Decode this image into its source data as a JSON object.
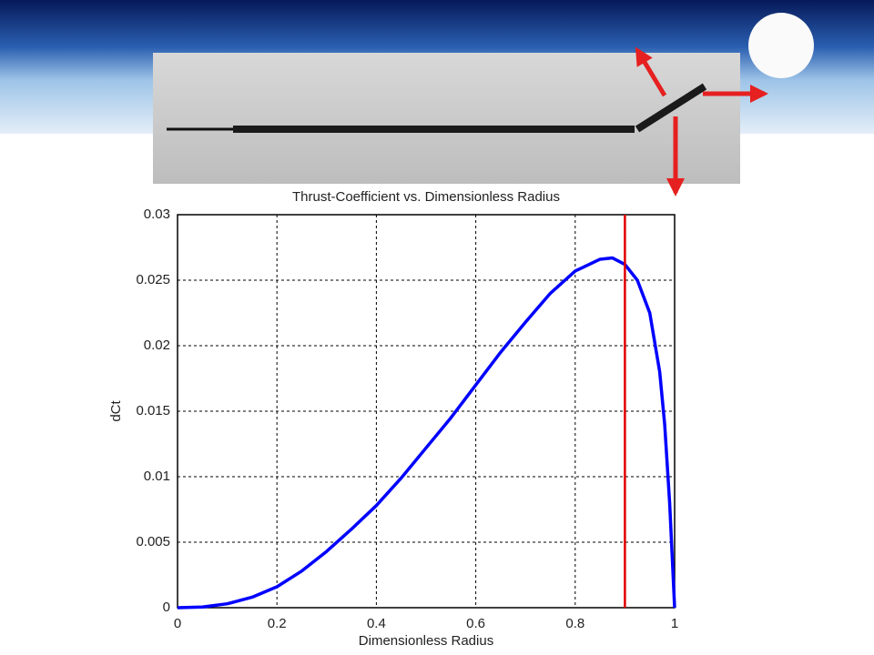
{
  "chart_data": {
    "type": "line",
    "title": "Thrust-Coefficient vs. Dimensionless Radius",
    "xlabel": "Dimensionless Radius",
    "ylabel": "dCt",
    "x": [
      0,
      0.05,
      0.1,
      0.15,
      0.2,
      0.25,
      0.3,
      0.35,
      0.4,
      0.45,
      0.5,
      0.55,
      0.6,
      0.65,
      0.7,
      0.75,
      0.8,
      0.85,
      0.875,
      0.9,
      0.925,
      0.95,
      0.97,
      0.98,
      0.99,
      1.0
    ],
    "values": [
      0,
      5e-05,
      0.0003,
      0.0008,
      0.0016,
      0.0028,
      0.0043,
      0.006,
      0.0078,
      0.0099,
      0.0122,
      0.0145,
      0.017,
      0.0195,
      0.0218,
      0.024,
      0.0257,
      0.0266,
      0.0267,
      0.0262,
      0.025,
      0.0225,
      0.018,
      0.014,
      0.008,
      0
    ],
    "color": "#0000ff",
    "reference_line": {
      "x": 0.9,
      "color": "#e00000"
    },
    "xlim": [
      0,
      1
    ],
    "ylim": [
      0,
      0.03
    ],
    "xticks": [
      0,
      0.2,
      0.4,
      0.6,
      0.8,
      1
    ],
    "yticks": [
      0,
      0.005,
      0.01,
      0.015,
      0.02,
      0.025,
      0.03
    ],
    "grid": true
  }
}
